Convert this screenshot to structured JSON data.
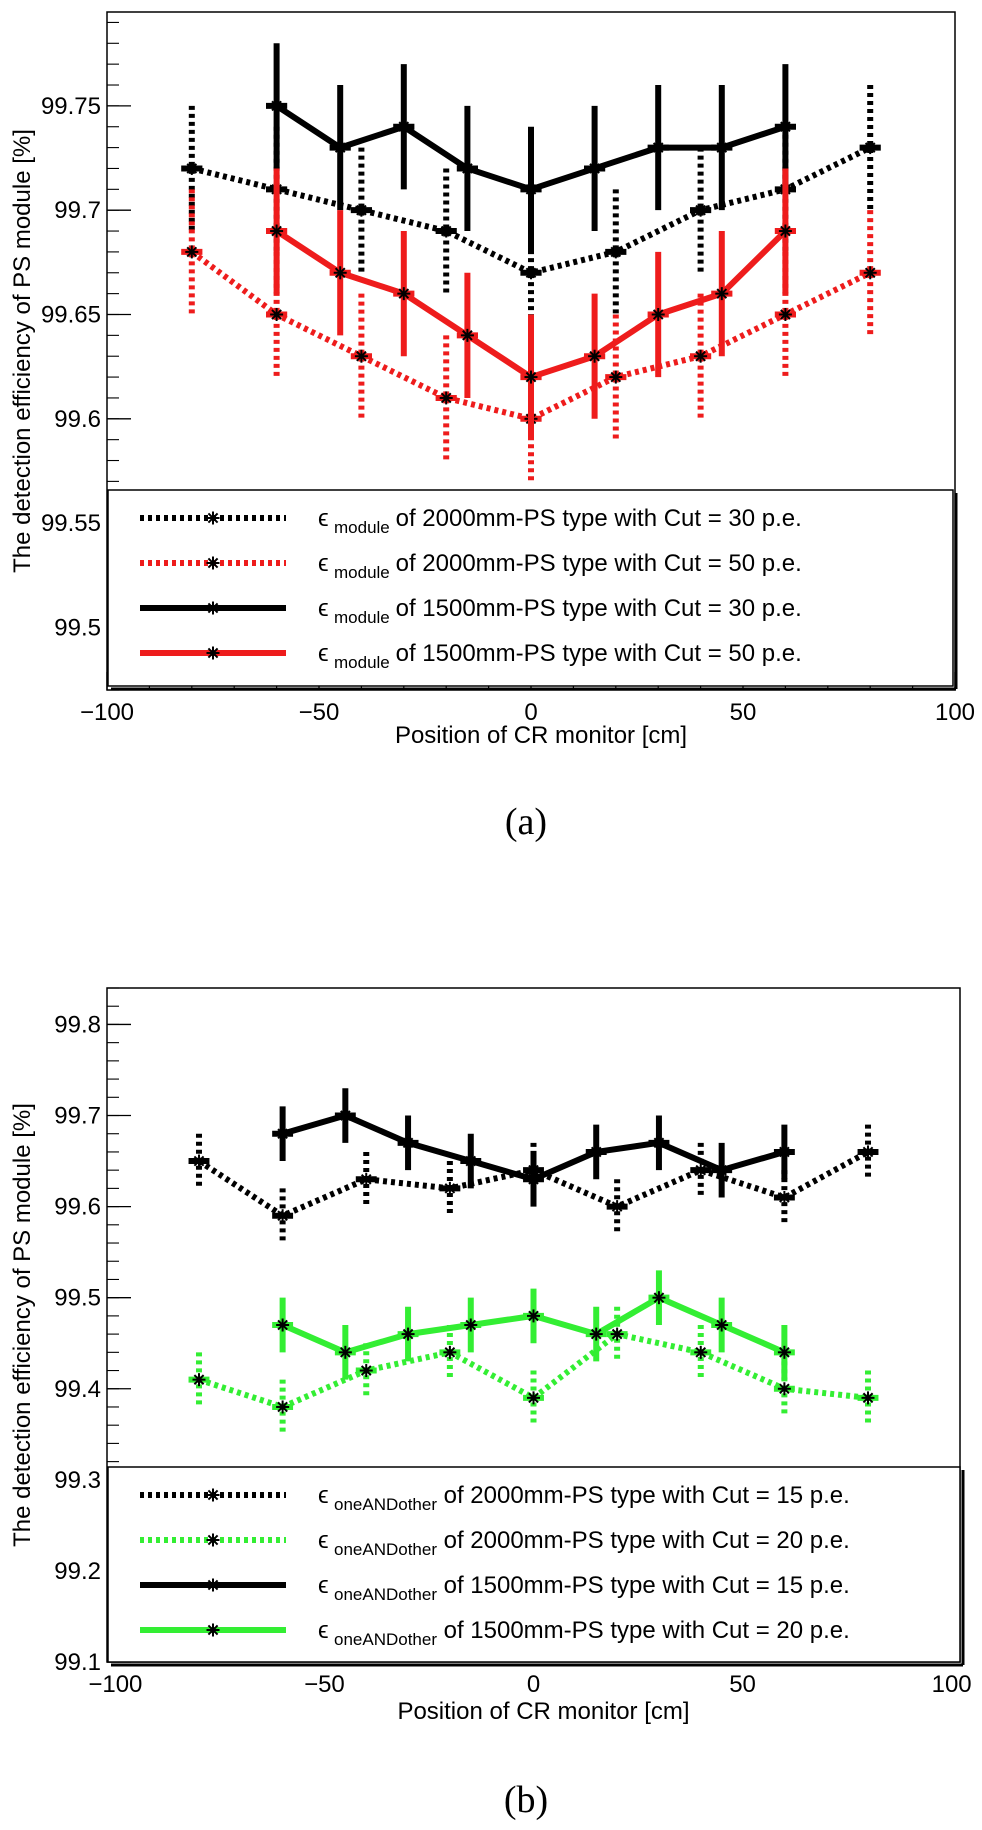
{
  "figure": {
    "caption_a": "(a)",
    "caption_b": "(b)"
  },
  "chart_data": [
    {
      "type": "line",
      "panel": "a",
      "title": "",
      "xlabel": "Position of CR monitor [cm]",
      "ylabel": "The detection efficiency of PS module [%]",
      "xlim": [
        -100,
        100
      ],
      "ylim": [
        99.47,
        99.795
      ],
      "x_ticks": [
        -100,
        -50,
        0,
        50,
        100
      ],
      "x_tick_labels": [
        "−100",
        "−50",
        "0",
        "50",
        "100"
      ],
      "y_ticks": [
        99.5,
        99.55,
        99.6,
        99.65,
        99.7,
        99.75
      ],
      "y_tick_labels": [
        "99.5",
        "99.55",
        "99.6",
        "99.65",
        "99.7",
        "99.75"
      ],
      "legend_position": "bottom",
      "series": [
        {
          "name": "of 2000mm-PS type with Cut = 30 p.e.",
          "symbol_text": "ϵ",
          "symbol_sub": "module",
          "color": "#000000",
          "style": "dotted",
          "x": [
            -80,
            -60,
            -40,
            -20,
            0,
            20,
            40,
            60,
            80
          ],
          "y": [
            99.72,
            99.71,
            99.7,
            99.69,
            99.67,
            99.68,
            99.7,
            99.71,
            99.73
          ],
          "err": [
            0.03,
            0.03,
            0.03,
            0.03,
            0.03,
            0.03,
            0.03,
            0.03,
            0.03
          ]
        },
        {
          "name": "of 2000mm-PS type with Cut = 50 p.e.",
          "symbol_text": "ϵ",
          "symbol_sub": "module",
          "color": "#ee1c1c",
          "style": "dotted",
          "x": [
            -80,
            -60,
            -40,
            -20,
            0,
            20,
            40,
            60,
            80
          ],
          "y": [
            99.68,
            99.65,
            99.63,
            99.61,
            99.6,
            99.62,
            99.63,
            99.65,
            99.67
          ],
          "err": [
            0.03,
            0.03,
            0.03,
            0.03,
            0.03,
            0.03,
            0.03,
            0.03,
            0.03
          ]
        },
        {
          "name": "of 1500mm-PS type with Cut = 30 p.e.",
          "symbol_text": "ϵ",
          "symbol_sub": "module",
          "color": "#000000",
          "style": "solid",
          "x": [
            -60,
            -45,
            -30,
            -15,
            0,
            15,
            30,
            45,
            60
          ],
          "y": [
            99.75,
            99.73,
            99.74,
            99.72,
            99.71,
            99.72,
            99.73,
            99.73,
            99.74
          ],
          "err": [
            0.03,
            0.03,
            0.03,
            0.03,
            0.03,
            0.03,
            0.03,
            0.03,
            0.03
          ]
        },
        {
          "name": "of 1500mm-PS type with Cut = 50 p.e.",
          "symbol_text": "ϵ",
          "symbol_sub": "module",
          "color": "#ee1c1c",
          "style": "solid",
          "x": [
            -60,
            -45,
            -30,
            -15,
            0,
            15,
            30,
            45,
            60
          ],
          "y": [
            99.69,
            99.67,
            99.66,
            99.64,
            99.62,
            99.63,
            99.65,
            99.66,
            99.69
          ],
          "err": [
            0.03,
            0.03,
            0.03,
            0.03,
            0.03,
            0.03,
            0.03,
            0.03,
            0.03
          ]
        }
      ]
    },
    {
      "type": "line",
      "panel": "b",
      "title": "",
      "xlabel": "Position of CR monitor [cm]",
      "ylabel": "The detection efficiency of PS module [%]",
      "xlim": [
        -102,
        102
      ],
      "ylim": [
        99.1,
        99.84
      ],
      "x_ticks": [
        -100,
        -50,
        0,
        50,
        100
      ],
      "x_tick_labels": [
        "−100",
        "−50",
        "0",
        "50",
        "100"
      ],
      "y_ticks": [
        99.1,
        99.2,
        99.3,
        99.4,
        99.5,
        99.6,
        99.7,
        99.8
      ],
      "y_tick_labels": [
        "99.1",
        "99.2",
        "99.3",
        "99.4",
        "99.5",
        "99.6",
        "99.7",
        "99.8"
      ],
      "legend_position": "bottom",
      "series": [
        {
          "name": "of 2000mm-PS type with Cut = 15 p.e.",
          "symbol_text": "ϵ",
          "symbol_sub": "oneANDother",
          "color": "#000000",
          "style": "dotted",
          "x": [
            -80,
            -60,
            -40,
            -20,
            0,
            20,
            40,
            60,
            80
          ],
          "y": [
            99.65,
            99.59,
            99.63,
            99.62,
            99.64,
            99.6,
            99.64,
            99.61,
            99.66
          ],
          "err": [
            0.03,
            0.03,
            0.03,
            0.03,
            0.03,
            0.03,
            0.03,
            0.03,
            0.03
          ]
        },
        {
          "name": "of 2000mm-PS type with Cut = 20 p.e.",
          "symbol_text": "ϵ",
          "symbol_sub": "oneANDother",
          "color": "#33ee33",
          "style": "dotted",
          "x": [
            -80,
            -60,
            -40,
            -20,
            0,
            20,
            40,
            60,
            80
          ],
          "y": [
            99.41,
            99.38,
            99.42,
            99.44,
            99.39,
            99.46,
            99.44,
            99.4,
            99.39
          ],
          "err": [
            0.03,
            0.03,
            0.03,
            0.03,
            0.03,
            0.03,
            0.03,
            0.03,
            0.03
          ]
        },
        {
          "name": "of 1500mm-PS type with Cut = 15 p.e.",
          "symbol_text": "ϵ",
          "symbol_sub": "oneANDother",
          "color": "#000000",
          "style": "solid",
          "x": [
            -60,
            -45,
            -30,
            -15,
            0,
            15,
            30,
            45,
            60
          ],
          "y": [
            99.68,
            99.7,
            99.67,
            99.65,
            99.63,
            99.66,
            99.67,
            99.64,
            99.66
          ],
          "err": [
            0.03,
            0.03,
            0.03,
            0.03,
            0.03,
            0.03,
            0.03,
            0.03,
            0.03
          ]
        },
        {
          "name": "of 1500mm-PS type with Cut = 20 p.e.",
          "symbol_text": "ϵ",
          "symbol_sub": "oneANDother",
          "color": "#33ee33",
          "style": "solid",
          "x": [
            -60,
            -45,
            -30,
            -15,
            0,
            15,
            30,
            45,
            60
          ],
          "y": [
            99.47,
            99.44,
            99.46,
            99.47,
            99.48,
            99.46,
            99.5,
            99.47,
            99.44
          ],
          "err": [
            0.03,
            0.03,
            0.03,
            0.03,
            0.03,
            0.03,
            0.03,
            0.03,
            0.03
          ]
        }
      ]
    }
  ]
}
